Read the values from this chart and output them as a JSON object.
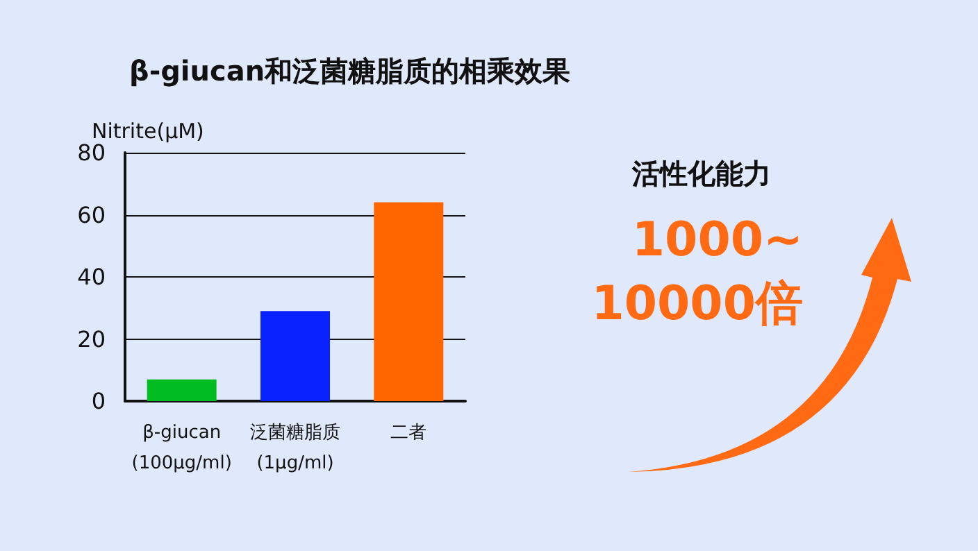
{
  "chart_data": {
    "type": "bar",
    "title": "β-giucan和泛菌糖脂质的相乘效果",
    "ylabel": "Nitrite(μM)",
    "categories": [
      "β-giucan\n(100μg/ml)",
      "泛菌糖脂质\n(1μg/ml)",
      "二者"
    ],
    "values": [
      7,
      29,
      64
    ],
    "colors": [
      "#00bb22",
      "#0a22ff",
      "#ff6600"
    ],
    "ylim": [
      0,
      80
    ],
    "yticks": [
      0,
      20,
      40,
      60,
      80
    ],
    "grid": "y",
    "annotations": [
      "活性化能力",
      "1000~\n10000倍"
    ]
  }
}
